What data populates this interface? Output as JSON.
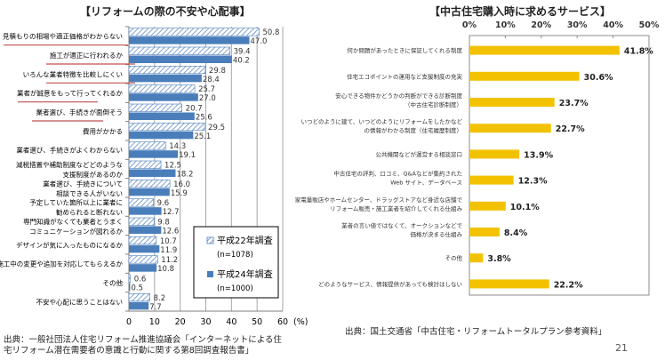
{
  "chart_data": [
    {
      "type": "bar",
      "orientation": "horizontal",
      "title": "【リフォームの際の不安や心配事】",
      "xlabel": "(%)",
      "ylabel": "",
      "xlim": [
        0,
        60
      ],
      "xticks": [
        "0",
        "10",
        "20",
        "30",
        "40",
        "50",
        "60"
      ],
      "grid": true,
      "legend_position": "bottom-right",
      "categories": [
        [
          "見積もりの相場や適正価格がわからない"
        ],
        [
          "施工が適正に行われるか"
        ],
        [
          "いろんな業者特徴を比較しにくい"
        ],
        [
          "業者が誠意をもって行ってくれるか"
        ],
        [
          "業者選び、手続きが面倒そう"
        ],
        [
          "費用がかかる"
        ],
        [
          "業者選び、手続きがよくわからない"
        ],
        [
          "減税措置や補助制度などどのような",
          "支援制度があるのか"
        ],
        [
          "業者選び、手続きについて",
          "相談できる人がいない"
        ],
        [
          "予定していた箇所以上に業者に",
          "勧められると断れない"
        ],
        [
          "専門知識がなくても業者とうまく",
          "コミュニケーションが図れるか"
        ],
        [
          "デザインが気に入ったものになるか"
        ],
        [
          "施工中の変更や追加を対応してもらえるか"
        ],
        [
          "その他"
        ],
        [
          "不安や心配に思うことはない"
        ]
      ],
      "underlined_categories": [
        0,
        1,
        2,
        3,
        4
      ],
      "series": [
        {
          "name": "平成22年調査",
          "sample": "(n=1078)",
          "style": "hatched",
          "color": "#9dbbe0",
          "values": [
            50.8,
            39.4,
            29.8,
            25.7,
            20.7,
            29.5,
            14.3,
            12.5,
            16.0,
            9.6,
            9.8,
            10.7,
            11.2,
            0.6,
            8.2
          ],
          "labels": [
            "50.8",
            "39.4",
            "29.8",
            "25.7",
            "20.7",
            "29.5",
            "14.3",
            "12.5",
            "16.0",
            "9.6",
            "9.8",
            "10.7",
            "11.2",
            "0.6",
            "8.2"
          ]
        },
        {
          "name": "平成24年調査",
          "sample": "(n=1000)",
          "style": "solid",
          "color": "#4a7ebb",
          "values": [
            47.0,
            40.2,
            28.4,
            27.0,
            25.6,
            25.1,
            19.1,
            18.2,
            15.9,
            12.7,
            12.6,
            11.9,
            10.8,
            0.5,
            7.7
          ],
          "labels": [
            "47.0",
            "40.2",
            "28.4",
            "27.0",
            "25.6",
            "25.1",
            "19.1",
            "18.2",
            "15.9",
            "12.7",
            "12.6",
            "11.9",
            "10.8",
            "0.5",
            "7.7"
          ]
        }
      ],
      "underline_color": "#c0504d"
    },
    {
      "type": "bar",
      "orientation": "horizontal",
      "title": "【中古住宅購入時に求めるサービス】",
      "xlabel": "",
      "ylabel": "",
      "xlim": [
        0,
        50
      ],
      "xticks": [
        "0%",
        "10%",
        "20%",
        "30%",
        "40%",
        "50%"
      ],
      "xaxis_position": "top",
      "grid": false,
      "categories": [
        [
          "何か問題があったときに保証してくれる制度"
        ],
        [
          "住宅エコポイントの運用など支援制度の充実"
        ],
        [
          "安心できる物件かどうかの判断ができる診断制度",
          "（中古住宅診断制度）"
        ],
        [
          "いつどのように建て、いつどのようにリフォームをしたかなど",
          "の情報がわかる制度（住宅履歴制度）"
        ],
        [
          "公共機関などが運営する相談窓口"
        ],
        [
          "中古住宅の評判、口コミ、Q&Aなどが集約された",
          "Web サイト、データベース"
        ],
        [
          "家電量販店やホームセンター、ドラッグストアなど身近な店舗で",
          "リフォーム販売・施工業者を紹介してくれる仕組み"
        ],
        [
          "業者の言い値ではなくて、オークションなどで",
          "価格が決まる仕組み"
        ],
        [
          "その他"
        ],
        [
          "どのようなサービス、情報提供があっても検討はしない"
        ]
      ],
      "series": [
        {
          "name": "",
          "color": "#f2c200",
          "values": [
            41.8,
            30.6,
            23.7,
            22.7,
            13.9,
            12.3,
            10.1,
            8.4,
            3.8,
            22.2
          ],
          "labels": [
            "41.8%",
            "30.6%",
            "23.7%",
            "22.7%",
            "13.9%",
            "12.3%",
            "10.1%",
            "8.4%",
            "3.8%",
            "22.2%"
          ]
        }
      ]
    }
  ],
  "footer": {
    "left_source_line1": "出典：一般社団法人住宅リフォーム推進協議会「インターネットによる住",
    "left_source_line2": "宅リフォーム潜在需要者の意識と行動に関する第8回調査報告書」",
    "right_source": "出典：国土交通省「中古住宅・リフォームトータルプラン参考資料」",
    "page_number": "21"
  }
}
